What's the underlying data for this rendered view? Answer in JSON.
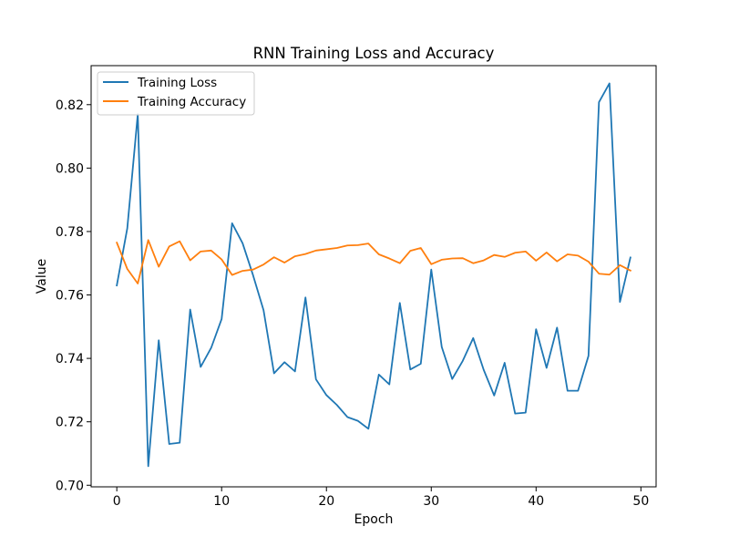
{
  "chart_data": {
    "type": "line",
    "title": "RNN Training Loss and Accuracy",
    "xlabel": "Epoch",
    "ylabel": "Value",
    "xlim": [
      -2.45,
      51.45
    ],
    "ylim": [
      0.6995,
      0.8323
    ],
    "xticks": [
      0,
      10,
      20,
      30,
      40,
      50
    ],
    "yticks": [
      0.7,
      0.72,
      0.74,
      0.76,
      0.78,
      0.8,
      0.82
    ],
    "ytick_labels": [
      "0.70",
      "0.72",
      "0.74",
      "0.76",
      "0.78",
      "0.80",
      "0.82"
    ],
    "grid": false,
    "legend_position": "top-left",
    "x": [
      0,
      1,
      2,
      3,
      4,
      5,
      6,
      7,
      8,
      9,
      10,
      11,
      12,
      13,
      14,
      15,
      16,
      17,
      18,
      19,
      20,
      21,
      22,
      23,
      24,
      25,
      26,
      27,
      28,
      29,
      30,
      31,
      32,
      33,
      34,
      35,
      36,
      37,
      38,
      39,
      40,
      41,
      42,
      43,
      44,
      45,
      46,
      47,
      48,
      49
    ],
    "series": [
      {
        "name": "Training Loss",
        "color": "#1f77b4",
        "values": [
          0.763,
          0.781,
          0.817,
          0.706,
          0.7457,
          0.713,
          0.7134,
          0.7554,
          0.7373,
          0.7433,
          0.7524,
          0.7826,
          0.7763,
          0.7662,
          0.7552,
          0.7353,
          0.7388,
          0.7359,
          0.7592,
          0.7334,
          0.7284,
          0.7253,
          0.7215,
          0.7203,
          0.7178,
          0.7349,
          0.7318,
          0.7575,
          0.7365,
          0.7383,
          0.768,
          0.7436,
          0.7335,
          0.7392,
          0.7464,
          0.7364,
          0.7283,
          0.7386,
          0.7226,
          0.7229,
          0.7492,
          0.737,
          0.7497,
          0.7298,
          0.7298,
          0.7408,
          0.8208,
          0.8267,
          0.7578,
          0.7718
        ]
      },
      {
        "name": "Training Accuracy",
        "color": "#ff7f0e",
        "values": [
          0.7765,
          0.7682,
          0.7636,
          0.7773,
          0.7689,
          0.7753,
          0.7769,
          0.7709,
          0.7737,
          0.774,
          0.7712,
          0.7663,
          0.7676,
          0.768,
          0.7696,
          0.7719,
          0.7702,
          0.7722,
          0.7729,
          0.774,
          0.7744,
          0.7748,
          0.7756,
          0.7757,
          0.7762,
          0.7728,
          0.7715,
          0.77,
          0.7739,
          0.7748,
          0.7697,
          0.7711,
          0.7715,
          0.7716,
          0.77,
          0.7709,
          0.7726,
          0.772,
          0.7733,
          0.7737,
          0.7708,
          0.7734,
          0.7706,
          0.7728,
          0.7724,
          0.7705,
          0.7667,
          0.7664,
          0.7694,
          0.7677
        ]
      }
    ]
  }
}
